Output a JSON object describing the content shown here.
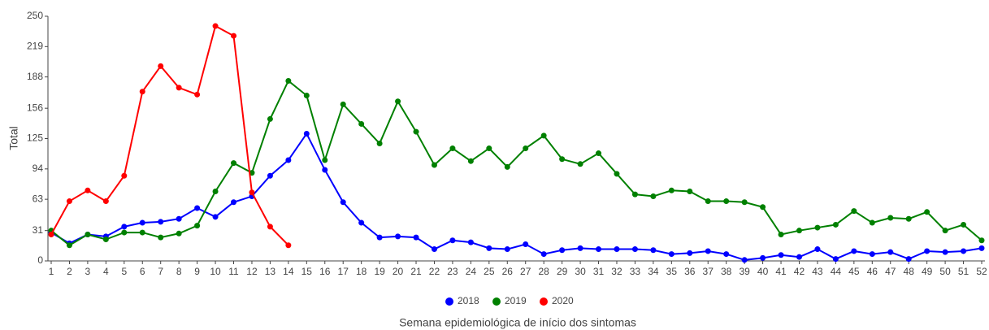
{
  "chart_data": {
    "type": "line",
    "y_label": "Total",
    "x_label": "Semana epidemiológica de início dos sintomas",
    "categories": [
      "1",
      "2",
      "3",
      "4",
      "5",
      "6",
      "7",
      "8",
      "9",
      "10",
      "11",
      "12",
      "13",
      "14",
      "15",
      "16",
      "17",
      "18",
      "19",
      "20",
      "21",
      "22",
      "23",
      "24",
      "25",
      "26",
      "27",
      "28",
      "29",
      "30",
      "31",
      "32",
      "33",
      "34",
      "35",
      "36",
      "37",
      "38",
      "39",
      "40",
      "41",
      "42",
      "43",
      "44",
      "45",
      "46",
      "47",
      "48",
      "49",
      "50",
      "51",
      "52"
    ],
    "ylim": [
      0,
      250
    ],
    "yticks": [
      0,
      31,
      63,
      94,
      125,
      156,
      188,
      219,
      250
    ],
    "legend": "bottom",
    "series": [
      {
        "name": "2018",
        "color": "#0000ff",
        "values": [
          29,
          18,
          27,
          25,
          35,
          39,
          40,
          43,
          54,
          45,
          60,
          66,
          87,
          103,
          130,
          93,
          60,
          39,
          24,
          25,
          24,
          12,
          21,
          19,
          13,
          12,
          17,
          7,
          11,
          13,
          12,
          12,
          12,
          11,
          7,
          8,
          10,
          7,
          1,
          3,
          6,
          4,
          12,
          2,
          10,
          7,
          9,
          2,
          10,
          9,
          10,
          13
        ]
      },
      {
        "name": "2019",
        "color": "#008000",
        "values": [
          31,
          16,
          27,
          22,
          29,
          29,
          24,
          28,
          36,
          71,
          100,
          90,
          145,
          184,
          169,
          103,
          160,
          140,
          120,
          163,
          132,
          98,
          115,
          102,
          115,
          96,
          115,
          128,
          104,
          99,
          110,
          89,
          68,
          66,
          72,
          71,
          61,
          61,
          60,
          55,
          27,
          31,
          34,
          37,
          51,
          39,
          44,
          43,
          50,
          31,
          37,
          21
        ]
      },
      {
        "name": "2020",
        "color": "#ff0000",
        "values": [
          27,
          61,
          72,
          61,
          87,
          173,
          199,
          177,
          170,
          240,
          230,
          70,
          35,
          16,
          null,
          null,
          null,
          null,
          null,
          null,
          null,
          null,
          null,
          null,
          null,
          null,
          null,
          null,
          null,
          null,
          null,
          null,
          null,
          null,
          null,
          null,
          null,
          null,
          null,
          null,
          null,
          null,
          null,
          null,
          null,
          null,
          null,
          null,
          null,
          null,
          null,
          null
        ]
      }
    ]
  }
}
